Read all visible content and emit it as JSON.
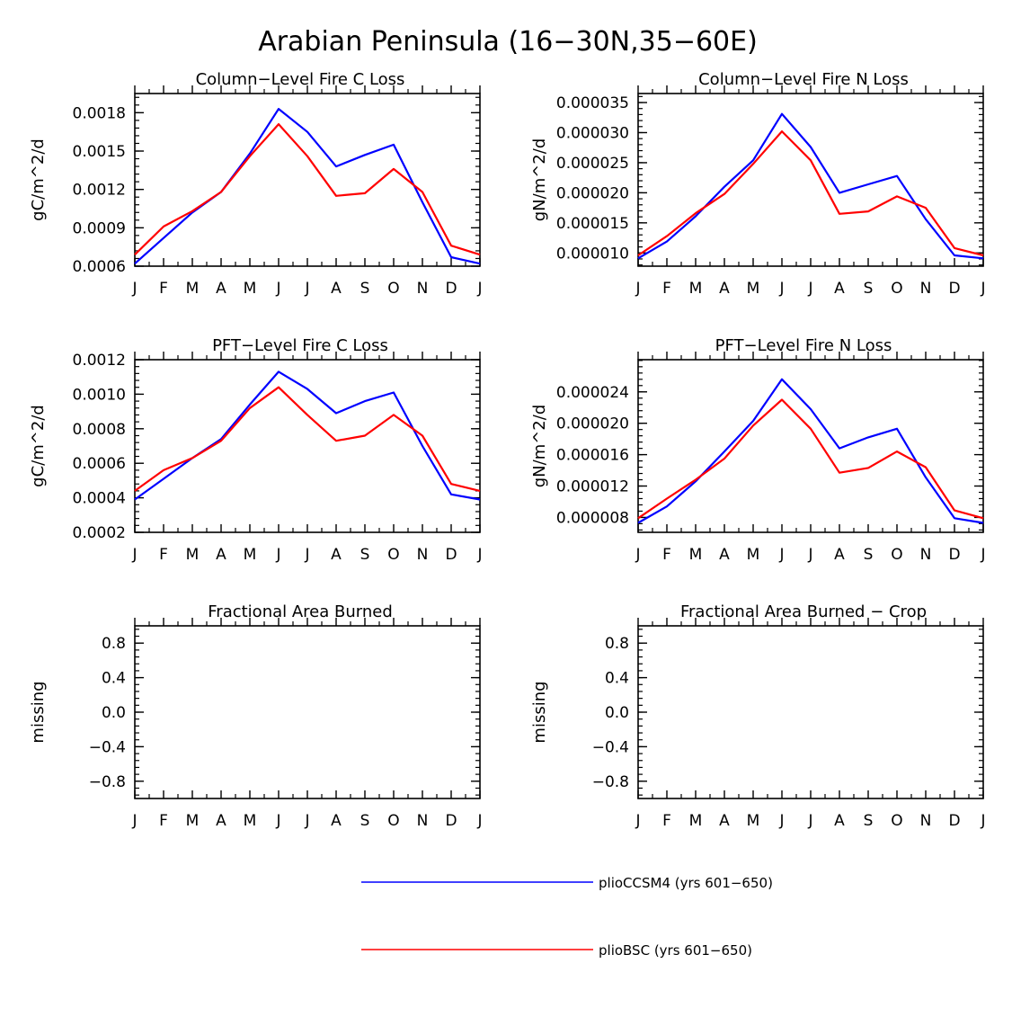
{
  "page_title": "Arabian Peninsula (16−30N,35−60E)",
  "chart_data": [
    {
      "type": "line",
      "title": "Column−Level Fire C Loss",
      "ylabel": "gC/m^2/d",
      "xlabel": "",
      "x": [
        "J",
        "F",
        "M",
        "A",
        "M",
        "J",
        "J",
        "A",
        "S",
        "O",
        "N",
        "D",
        "J"
      ],
      "ylim": [
        0.0006,
        0.00195
      ],
      "yticks": [
        0.0006,
        0.0009,
        0.0012,
        0.0015,
        0.0018
      ],
      "ytick_labels": [
        "0.0006",
        "0.0009",
        "0.0012",
        "0.0015",
        "0.0018"
      ],
      "series": [
        {
          "name": "plioCCSM4 (yrs 601−650)",
          "color": "#0000ff",
          "values": [
            0.00062,
            0.00082,
            0.00102,
            0.00118,
            0.00148,
            0.00183,
            0.00165,
            0.00138,
            0.00147,
            0.00155,
            0.0011,
            0.00067,
            0.00062
          ]
        },
        {
          "name": "plioBSC (yrs 601−650)",
          "color": "#ff0000",
          "values": [
            0.00069,
            0.00091,
            0.00103,
            0.00118,
            0.00146,
            0.00171,
            0.00146,
            0.00115,
            0.00117,
            0.00136,
            0.00118,
            0.00076,
            0.00069
          ]
        }
      ]
    },
    {
      "type": "line",
      "title": "Column−Level Fire N Loss",
      "ylabel": "gN/m^2/d",
      "xlabel": "",
      "x": [
        "J",
        "F",
        "M",
        "A",
        "M",
        "J",
        "J",
        "A",
        "S",
        "O",
        "N",
        "D",
        "J"
      ],
      "ylim": [
        7.8e-06,
        3.65e-05
      ],
      "yticks": [
        1e-05,
        1.5e-05,
        2e-05,
        2.5e-05,
        3e-05,
        3.5e-05
      ],
      "ytick_labels": [
        "0.000010",
        "0.000015",
        "0.000020",
        "0.000025",
        "0.000030",
        "0.000035"
      ],
      "series": [
        {
          "name": "plioCCSM4 (yrs 601−650)",
          "color": "#0000ff",
          "values": [
            9.1e-06,
            1.19e-05,
            1.61e-05,
            2.1e-05,
            2.54e-05,
            3.31e-05,
            2.76e-05,
            2e-05,
            2.14e-05,
            2.28e-05,
            1.56e-05,
            9.6e-06,
            9.1e-06
          ]
        },
        {
          "name": "plioBSC (yrs 601−650)",
          "color": "#ff0000",
          "values": [
            9.6e-06,
            1.28e-05,
            1.66e-05,
            1.98e-05,
            2.48e-05,
            3.02e-05,
            2.54e-05,
            1.65e-05,
            1.69e-05,
            1.94e-05,
            1.75e-05,
            1.08e-05,
            9.6e-06
          ]
        }
      ]
    },
    {
      "type": "line",
      "title": "PFT−Level Fire C Loss",
      "ylabel": "gC/m^2/d",
      "xlabel": "",
      "x": [
        "J",
        "F",
        "M",
        "A",
        "M",
        "J",
        "J",
        "A",
        "S",
        "O",
        "N",
        "D",
        "J"
      ],
      "ylim": [
        0.0002,
        0.0012
      ],
      "yticks": [
        0.0002,
        0.0004,
        0.0006,
        0.0008,
        0.001,
        0.0012
      ],
      "ytick_labels": [
        "0.0002",
        "0.0004",
        "0.0006",
        "0.0008",
        "0.0010",
        "0.0012"
      ],
      "series": [
        {
          "name": "plioCCSM4 (yrs 601−650)",
          "color": "#0000ff",
          "values": [
            0.00039,
            0.00051,
            0.00063,
            0.00074,
            0.00094,
            0.00113,
            0.00103,
            0.00089,
            0.00096,
            0.00101,
            0.0007,
            0.00042,
            0.00039
          ]
        },
        {
          "name": "plioBSC (yrs 601−650)",
          "color": "#ff0000",
          "values": [
            0.00044,
            0.00056,
            0.00063,
            0.00073,
            0.00092,
            0.00104,
            0.00088,
            0.00073,
            0.00076,
            0.00088,
            0.00076,
            0.00048,
            0.00044
          ]
        }
      ]
    },
    {
      "type": "line",
      "title": "PFT−Level Fire N Loss",
      "ylabel": "gN/m^2/d",
      "xlabel": "",
      "x": [
        "J",
        "F",
        "M",
        "A",
        "M",
        "J",
        "J",
        "A",
        "S",
        "O",
        "N",
        "D",
        "J"
      ],
      "ylim": [
        6.1e-06,
        2.81e-05
      ],
      "yticks": [
        8e-06,
        1.2e-05,
        1.6e-05,
        2e-05,
        2.4e-05
      ],
      "ytick_labels": [
        "0.000008",
        "0.000012",
        "0.000016",
        "0.000020",
        "0.000024"
      ],
      "series": [
        {
          "name": "plioCCSM4 (yrs 601−650)",
          "color": "#0000ff",
          "values": [
            7.3e-06,
            9.4e-06,
            1.26e-05,
            1.64e-05,
            2.03e-05,
            2.56e-05,
            2.18e-05,
            1.68e-05,
            1.82e-05,
            1.93e-05,
            1.31e-05,
            7.9e-06,
            7.3e-06
          ]
        },
        {
          "name": "plioBSC (yrs 601−650)",
          "color": "#ff0000",
          "values": [
            7.9e-06,
            1.04e-05,
            1.28e-05,
            1.55e-05,
            1.97e-05,
            2.3e-05,
            1.93e-05,
            1.37e-05,
            1.43e-05,
            1.64e-05,
            1.44e-05,
            8.9e-06,
            7.9e-06
          ]
        }
      ]
    },
    {
      "type": "line",
      "title": "Fractional Area Burned",
      "ylabel": "missing",
      "xlabel": "",
      "x": [
        "J",
        "F",
        "M",
        "A",
        "M",
        "J",
        "J",
        "A",
        "S",
        "O",
        "N",
        "D",
        "J"
      ],
      "ylim": [
        -1,
        1
      ],
      "yticks": [
        -0.8,
        -0.4,
        0,
        0.4,
        0.8
      ],
      "ytick_labels": [
        "−0.8",
        "−0.4",
        "0.0",
        "0.4",
        "0.8"
      ],
      "series": []
    },
    {
      "type": "line",
      "title": "Fractional Area Burned − Crop",
      "ylabel": "missing",
      "xlabel": "",
      "x": [
        "J",
        "F",
        "M",
        "A",
        "M",
        "J",
        "J",
        "A",
        "S",
        "O",
        "N",
        "D",
        "J"
      ],
      "ylim": [
        -1,
        1
      ],
      "yticks": [
        -0.8,
        -0.4,
        0,
        0.4,
        0.8
      ],
      "ytick_labels": [
        "−0.8",
        "−0.4",
        "0.0",
        "0.4",
        "0.8"
      ],
      "series": []
    }
  ],
  "legend": {
    "placement": "bottom-center",
    "entries": [
      {
        "label": "plioCCSM4 (yrs 601−650)",
        "color": "#0000ff"
      },
      {
        "label": "plioBSC (yrs 601−650)",
        "color": "#ff0000"
      }
    ]
  }
}
